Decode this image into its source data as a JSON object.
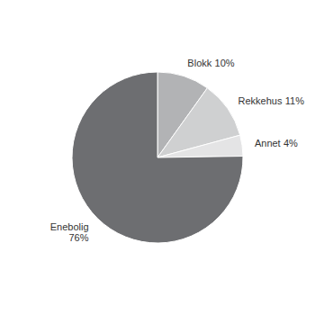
{
  "chart_data": {
    "type": "pie",
    "categories": [
      "Blokk",
      "Rekkehus",
      "Annet",
      "Enebolig"
    ],
    "values": [
      10,
      11,
      4,
      76
    ],
    "value_labels": [
      "10%",
      "11%",
      "4%",
      "76%"
    ],
    "colors": [
      "#b2b3b5",
      "#cfd0d1",
      "#e4e4e5",
      "#6d6e71"
    ],
    "data_labels": true
  }
}
